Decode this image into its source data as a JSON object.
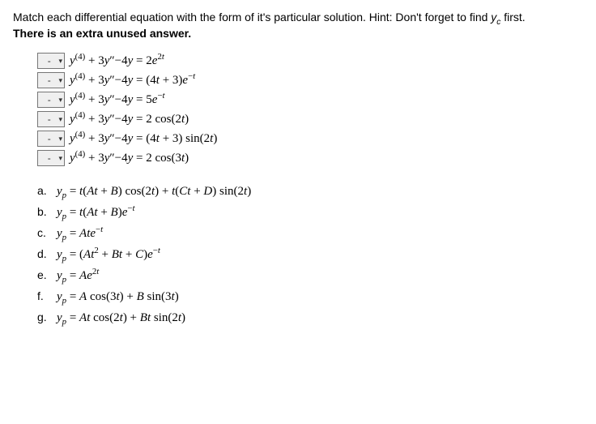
{
  "prompt": {
    "line1_a": "Match each differential equation with the form of it's particular solution. Hint: Don't forget to find ",
    "line1_yc": "y",
    "line1_yc_sub": "c",
    "line1_b": " first.",
    "line2": "There is an extra unused answer."
  },
  "dropdown_placeholder": "-",
  "equations": [
    {
      "html": "<span class='it'>y</span><sup>(4)</sup> + 3<span class='it'>y</span>″−4<span class='it'>y</span> = 2<span class='it'>e</span><sup>2<span class='it'>t</span></sup>"
    },
    {
      "html": "<span class='it'>y</span><sup>(4)</sup> + 3<span class='it'>y</span>″−4<span class='it'>y</span> = (4<span class='it'>t</span> + 3)<span class='it'>e</span><sup>−<span class='it'>t</span></sup>"
    },
    {
      "html": "<span class='it'>y</span><sup>(4)</sup> + 3<span class='it'>y</span>″−4<span class='it'>y</span> = 5<span class='it'>e</span><sup>−<span class='it'>t</span></sup>"
    },
    {
      "html": "<span class='it'>y</span><sup>(4)</sup> + 3<span class='it'>y</span>″−4<span class='it'>y</span> = 2 cos(2<span class='it'>t</span>)"
    },
    {
      "html": "<span class='it'>y</span><sup>(4)</sup> + 3<span class='it'>y</span>″−4<span class='it'>y</span> = (4<span class='it'>t</span> + 3) sin(2<span class='it'>t</span>)"
    },
    {
      "html": "<span class='it'>y</span><sup>(4)</sup> + 3<span class='it'>y</span>″−4<span class='it'>y</span> = 2 cos(3<span class='it'>t</span>)"
    }
  ],
  "answers": [
    {
      "label": "a.",
      "html": "<span class='it'>y<sub>p</sub></span> = <span class='it'>t</span>(<span class='it'>At</span> + <span class='it'>B</span>) cos(2<span class='it'>t</span>) + <span class='it'>t</span>(<span class='it'>Ct</span> + <span class='it'>D</span>) sin(2<span class='it'>t</span>)"
    },
    {
      "label": "b.",
      "html": "<span class='it'>y<sub>p</sub></span> = <span class='it'>t</span>(<span class='it'>At</span> + <span class='it'>B</span>)<span class='it'>e</span><sup>−<span class='it'>t</span></sup>"
    },
    {
      "label": "c.",
      "html": "<span class='it'>y<sub>p</sub></span> = <span class='it'>Ate</span><sup>−<span class='it'>t</span></sup>"
    },
    {
      "label": "d.",
      "html": "<span class='it'>y<sub>p</sub></span> = (<span class='it'>At</span><sup>2</sup> + <span class='it'>Bt</span> + <span class='it'>C</span>)<span class='it'>e</span><sup>−<span class='it'>t</span></sup>"
    },
    {
      "label": "e.",
      "html": "<span class='it'>y<sub>p</sub></span> = <span class='it'>Ae</span><sup>2<span class='it'>t</span></sup>"
    },
    {
      "label": "f.",
      "html": "<span class='it'>y<sub>p</sub></span> = <span class='it'>A</span> cos(3<span class='it'>t</span>) + <span class='it'>B</span> sin(3<span class='it'>t</span>)"
    },
    {
      "label": "g.",
      "html": "<span class='it'>y<sub>p</sub></span> = <span class='it'>At</span> cos(2<span class='it'>t</span>) + <span class='it'>Bt</span> sin(2<span class='it'>t</span>)"
    }
  ]
}
